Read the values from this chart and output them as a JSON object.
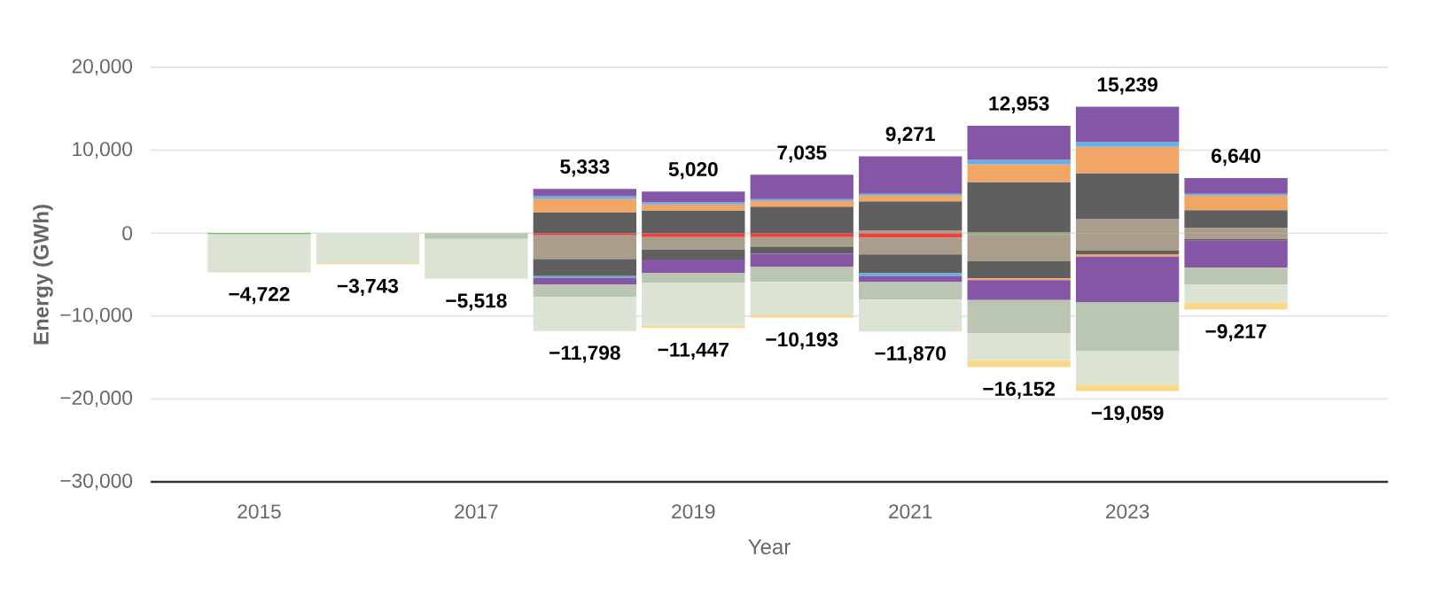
{
  "chart_data": {
    "type": "bar",
    "stacked": true,
    "xlabel": "Year",
    "ylabel": "Energy (GWh)",
    "x": [
      2015,
      2016,
      2017,
      2018,
      2019,
      2020,
      2021,
      2022,
      2023,
      2024
    ],
    "xlim": [
      2014,
      2025.4
    ],
    "xticks": [
      2015,
      2017,
      2019,
      2021,
      2023
    ],
    "ylim": [
      -30000,
      20000
    ],
    "yticks": [
      {
        "value": -30000,
        "label": "−30,000"
      },
      {
        "value": -20000,
        "label": "−20,000"
      },
      {
        "value": -10000,
        "label": "−10,000"
      },
      {
        "value": 0,
        "label": "0"
      },
      {
        "value": 10000,
        "label": "10,000"
      },
      {
        "value": 20000,
        "label": "20,000"
      }
    ],
    "grid": "y",
    "series": [
      {
        "color": "#e8433f",
        "values": [
          null,
          null,
          null,
          -284,
          -496,
          -496,
          -570,
          null,
          null,
          null
        ]
      },
      {
        "color": "#4caf50",
        "values": [
          -140,
          null,
          null,
          null,
          null,
          null,
          null,
          -140,
          null,
          null
        ]
      },
      {
        "color": "#ab9d8c",
        "values": [
          null,
          null,
          null,
          -2836,
          -1489,
          -1134,
          -1990,
          -3261,
          -2127,
          -710
        ]
      },
      {
        "color": "#5f5f5f",
        "values": [
          null,
          null,
          null,
          -2056,
          -1205,
          -851,
          -2270,
          -2055,
          -425,
          -210
        ]
      },
      {
        "color": "#f2a665",
        "values": [
          null,
          null,
          null,
          null,
          null,
          null,
          null,
          -213,
          -284,
          null
        ]
      },
      {
        "color": "#67aee3",
        "values": [
          null,
          null,
          null,
          -213,
          null,
          null,
          -355,
          null,
          null,
          null
        ]
      },
      {
        "color": "#8656a6",
        "values": [
          null,
          null,
          null,
          -780,
          -1631,
          -1560,
          -710,
          -2410,
          -5530,
          -3260
        ]
      },
      {
        "color": "#bac6b2",
        "values": [
          null,
          null,
          -710,
          -1489,
          -1205,
          -1843,
          -2130,
          -3970,
          -5885,
          -2055
        ]
      },
      {
        "color": "#dbe4d4",
        "values": [
          -4582,
          -3600,
          -4808,
          -4140,
          -5137,
          -4025,
          -3845,
          -3253,
          -4028,
          -2132
        ]
      },
      {
        "color": "#f8d98a",
        "values": [
          null,
          -143,
          null,
          null,
          -284,
          -284,
          null,
          -850,
          -780,
          -850
        ]
      },
      {
        "color": "#ab9d8c",
        "values": [
          null,
          null,
          null,
          null,
          null,
          null,
          355,
          140,
          1700,
          640
        ]
      },
      {
        "color": "#5f5f5f",
        "values": [
          null,
          null,
          null,
          2482,
          2751,
          3190,
          3475,
          6030,
          5530,
          2130
        ]
      },
      {
        "color": "#f2a665",
        "values": [
          null,
          null,
          null,
          1631,
          709,
          709,
          710,
          2127,
          3190,
          1770
        ]
      },
      {
        "color": "#67aee3",
        "values": [
          null,
          null,
          null,
          355,
          284,
          213,
          210,
          567,
          570,
          210
        ]
      },
      {
        "color": "#8656a6",
        "values": [
          null,
          null,
          null,
          865,
          1276,
          2923,
          4521,
          4089,
          4249,
          1890
        ]
      }
    ],
    "annotations": [
      {
        "text": "−4,722",
        "x": 2015,
        "y": -4722
      },
      {
        "text": "−3,743",
        "x": 2016,
        "y": -3743
      },
      {
        "text": "−5,518",
        "x": 2017,
        "y": -5518
      },
      {
        "text": "5,333",
        "x": 2018,
        "y": 5333
      },
      {
        "text": "−11,798",
        "x": 2018,
        "y": -11798
      },
      {
        "text": "5,020",
        "x": 2019,
        "y": 5020
      },
      {
        "text": "−11,447",
        "x": 2019,
        "y": -11447
      },
      {
        "text": "7,035",
        "x": 2020,
        "y": 7035
      },
      {
        "text": "−10,193",
        "x": 2020,
        "y": -10193
      },
      {
        "text": "9,271",
        "x": 2021,
        "y": 9271
      },
      {
        "text": "−11,870",
        "x": 2021,
        "y": -11870
      },
      {
        "text": "12,953",
        "x": 2022,
        "y": 12953
      },
      {
        "text": "−16,152",
        "x": 2022,
        "y": -16152
      },
      {
        "text": "15,239",
        "x": 2023,
        "y": 15239
      },
      {
        "text": "−19,059",
        "x": 2023,
        "y": -19059
      },
      {
        "text": "6,640",
        "x": 2024,
        "y": 6640
      },
      {
        "text": "−9,217",
        "x": 2024,
        "y": -9217
      }
    ]
  }
}
